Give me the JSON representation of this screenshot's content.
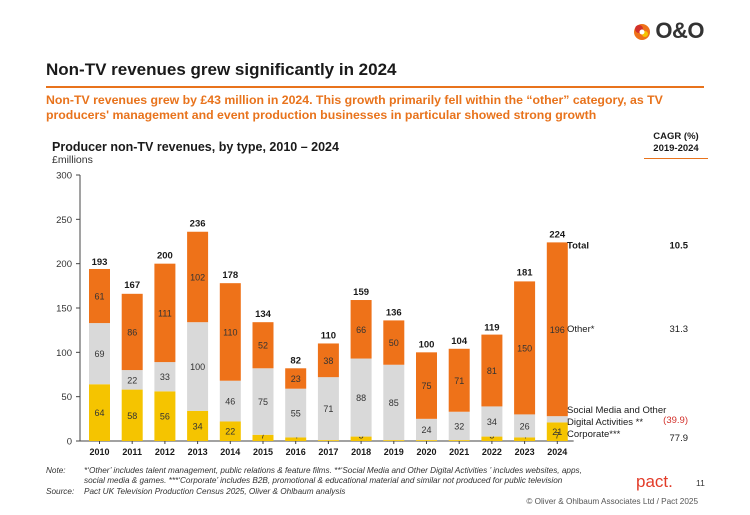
{
  "header": {
    "logo_text": "O&O",
    "title": "Non-TV revenues grew significantly in 2024",
    "subtitle": "Non-TV revenues grew by £43 million in 2024. This growth primarily fell within the “other” category, as TV producers' management and event production businesses in particular showed strong growth"
  },
  "cagr": {
    "header_line1": "CAGR (%)",
    "header_line2": "2019-2024"
  },
  "chart_data": {
    "type": "bar",
    "stacked": true,
    "title": "Producer non-TV revenues, by type, 2010 – 2024",
    "ylabel": "£millions",
    "ylim": [
      0,
      300
    ],
    "yticks": [
      "0",
      "50",
      "100",
      "150",
      "200",
      "250",
      "300"
    ],
    "categories": [
      "2010",
      "2011",
      "2012",
      "2013",
      "2014",
      "2015",
      "2016",
      "2017",
      "2018",
      "2019",
      "2020",
      "2021",
      "2022",
      "2023",
      "2024"
    ],
    "series": [
      {
        "name": "Corporate***",
        "color": "#f5c400",
        "values": [
          64,
          58,
          56,
          34,
          22,
          7,
          4,
          1,
          5,
          1,
          1,
          1,
          5,
          4,
          21
        ],
        "cagr": "77.9",
        "cagr_color": "#1a1a1a"
      },
      {
        "name": "Social Media and Other Digital Activities **",
        "color": "#d9d9d9",
        "values": [
          69,
          22,
          33,
          100,
          46,
          75,
          55,
          71,
          88,
          85,
          24,
          32,
          34,
          26,
          7
        ],
        "cagr": "(39.9)",
        "cagr_color": "#d2302a"
      },
      {
        "name": "Other*",
        "color": "#ee7219",
        "values": [
          61,
          86,
          111,
          102,
          110,
          52,
          23,
          38,
          66,
          50,
          75,
          71,
          81,
          150,
          196
        ],
        "cagr": "31.3",
        "cagr_color": "#1a1a1a"
      }
    ],
    "totals": [
      193,
      167,
      200,
      236,
      178,
      134,
      82,
      110,
      159,
      136,
      100,
      104,
      119,
      181,
      224
    ],
    "total_label": "Total",
    "total_cagr": "10.5",
    "legend_placement": "right",
    "grid": false
  },
  "notes": {
    "note_label": "Note:",
    "note_line1": "*‘Other’ includes talent management, public relations & feature films. **‘Social Media and Other Digital Activities ’ includes websites, apps,",
    "note_line2": "social media & games. ***‘Corporate’ includes B2B, promotional & educational material and similar not produced for public television",
    "source_label": "Source:",
    "source_text": "Pact UK Television Production Census 2025, Oliver & Ohlbaum analysis"
  },
  "footer": {
    "pact_logo": "pact.",
    "page_number": "11",
    "copyright": "© Oliver & Ohlbaum Associates Ltd / Pact 2025"
  }
}
